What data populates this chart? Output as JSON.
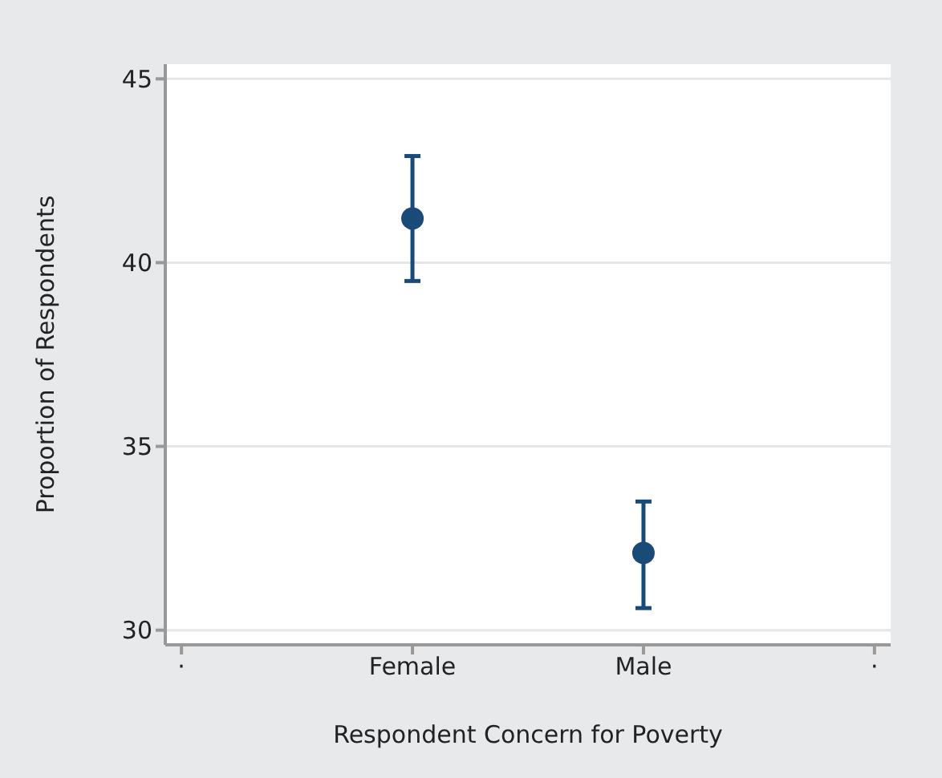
{
  "chart_data": {
    "type": "scatter",
    "xlabel": "Respondent Concern for Poverty",
    "ylabel": "Proportion of Respondents",
    "categories": [
      "·",
      "Female",
      "Male",
      "·"
    ],
    "series": [
      {
        "color": "#1a4a78",
        "values": [
          null,
          41.2,
          32.1,
          null
        ],
        "errors": [
          null,
          [
            39.5,
            42.9
          ],
          [
            30.6,
            33.5
          ],
          null
        ]
      }
    ],
    "ylim": [
      29.6,
      45.4
    ],
    "yticks": [
      30,
      35,
      40,
      45
    ],
    "grid": "y",
    "marker": "circle",
    "legend": false
  }
}
